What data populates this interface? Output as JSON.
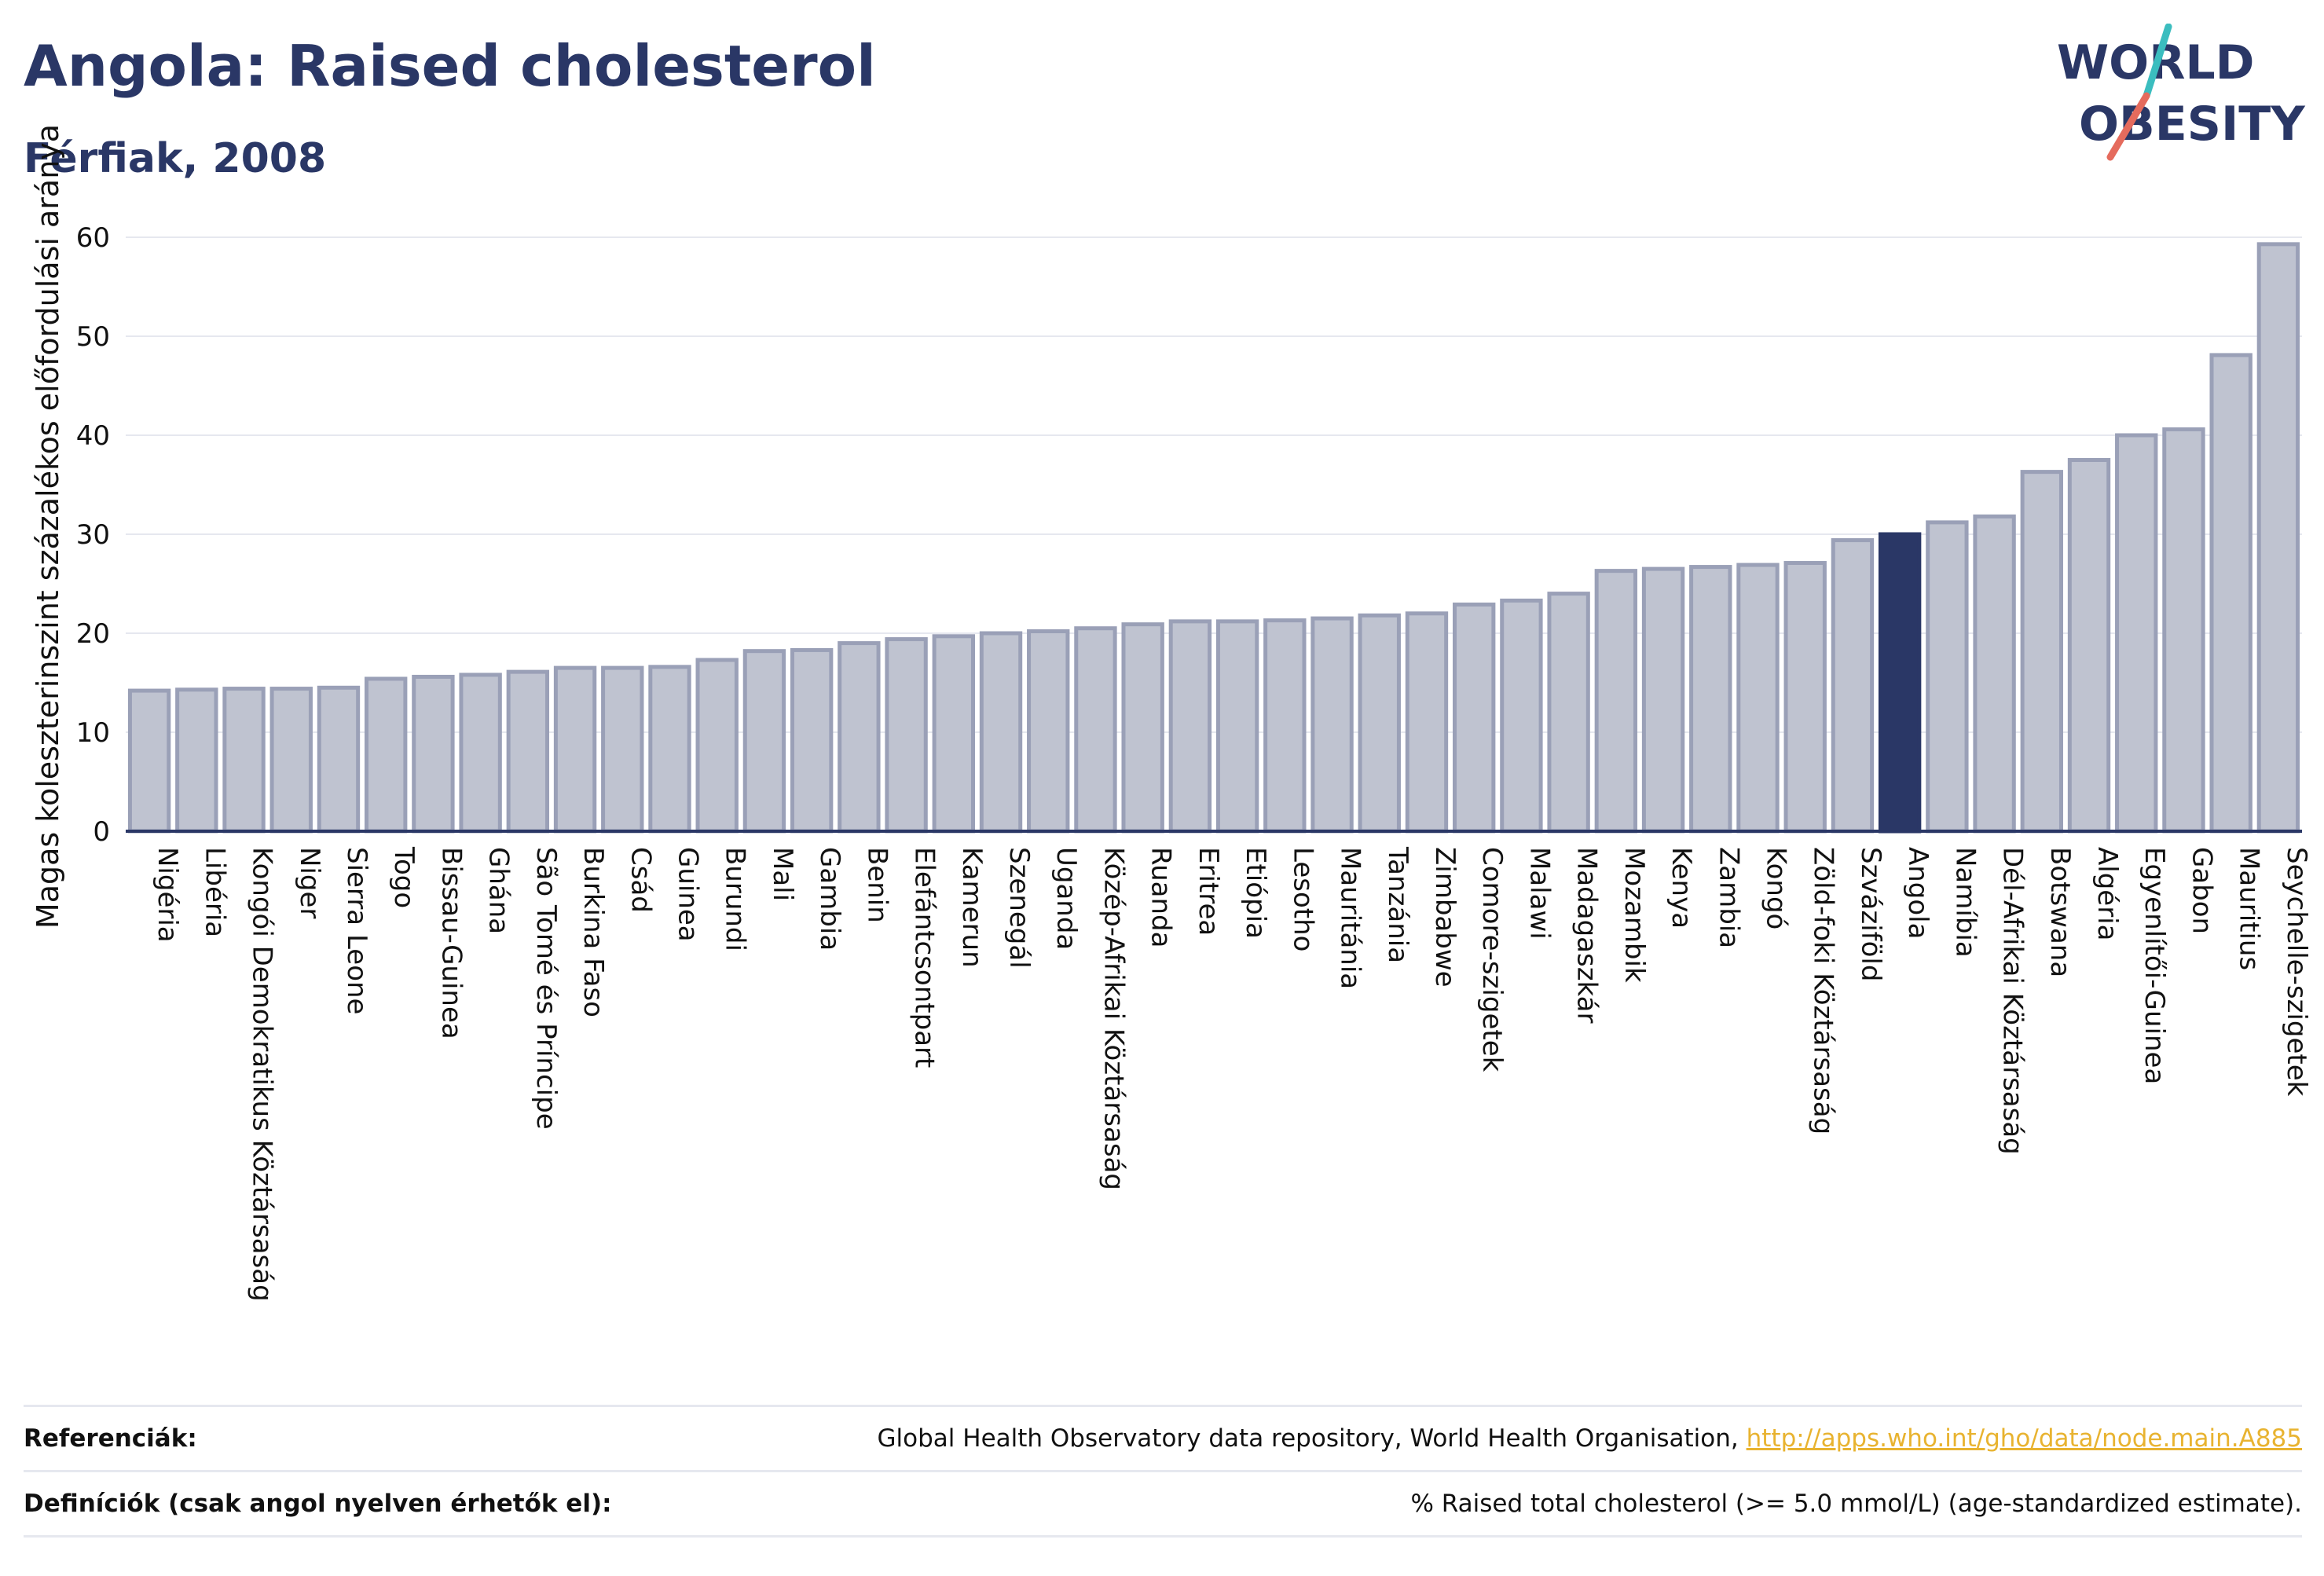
{
  "header": {
    "title": "Angola: Raised cholesterol",
    "subtitle": "Férfiak, 2008"
  },
  "logo": {
    "line1": "WORLD",
    "line2": "OBESITY"
  },
  "colors": {
    "bar_fill": "#bfc3d0",
    "bar_stroke": "#9aa0b7",
    "highlight": "#2a3766",
    "axis": "#2a3766",
    "grid": "#e6e8ef",
    "text": "#111111",
    "link": "#e8b330",
    "logo_text": "#2a3766",
    "logo_teal": "#3bbdbf",
    "logo_red": "#e56b5d"
  },
  "chart_data": {
    "type": "bar",
    "title": "Angola: Raised cholesterol",
    "subtitle": "Férfiak, 2008",
    "xlabel": "",
    "ylabel": "Magas koleszterinszint százalékos előfordulási aránya",
    "ylim": [
      0,
      61
    ],
    "yticks": [
      0,
      10,
      20,
      30,
      40,
      50,
      60
    ],
    "grid": true,
    "highlight": "Angola",
    "categories": [
      "Nigéria",
      "Libéria",
      "Kongói Demokratikus Köztársaság",
      "Niger",
      "Sierra Leone",
      "Togo",
      "Bissau-Guinea",
      "Ghána",
      "São Tomé és Príncipe",
      "Burkina Faso",
      "Csád",
      "Guinea",
      "Burundi",
      "Mali",
      "Gambia",
      "Benin",
      "Elefántcsontpart",
      "Kamerun",
      "Szenegál",
      "Uganda",
      "Közép-Afrikai Köztársaság",
      "Ruanda",
      "Eritrea",
      "Etiópia",
      "Lesotho",
      "Mauritánia",
      "Tanzánia",
      "Zimbabwe",
      "Comore-szigetek",
      "Malawi",
      "Madagaszkár",
      "Mozambik",
      "Kenya",
      "Zambia",
      "Kongó",
      "Zöld-foki Köztársaság",
      "Szváziföld",
      "Angola",
      "Namíbia",
      "Dél-Afrikai Köztársaság",
      "Botswana",
      "Algéria",
      "Egyenlítői-Guinea",
      "Gabon",
      "Mauritius",
      "Seychelle-szigetek"
    ],
    "values": [
      14.2,
      14.3,
      14.4,
      14.4,
      14.5,
      15.4,
      15.6,
      15.8,
      16.1,
      16.5,
      16.5,
      16.6,
      17.3,
      18.2,
      18.3,
      19.0,
      19.4,
      19.7,
      20.0,
      20.2,
      20.5,
      20.9,
      21.2,
      21.2,
      21.3,
      21.5,
      21.8,
      22.0,
      22.9,
      23.3,
      24.0,
      26.3,
      26.5,
      26.7,
      26.9,
      27.1,
      29.4,
      30.0,
      31.2,
      31.8,
      36.3,
      37.5,
      40.0,
      40.6,
      48.1,
      59.3
    ]
  },
  "footer": {
    "references_label": "Referenciák:",
    "references_text": "Global Health Observatory data repository, World Health Organisation,",
    "references_link": "http://apps.who.int/gho/data/node.main.A885",
    "definitions_label": "Definíciók (csak angol nyelven érhetők el):",
    "definitions_text": "% Raised total cholesterol (>= 5.0 mmol/L) (age-standardized estimate)."
  }
}
